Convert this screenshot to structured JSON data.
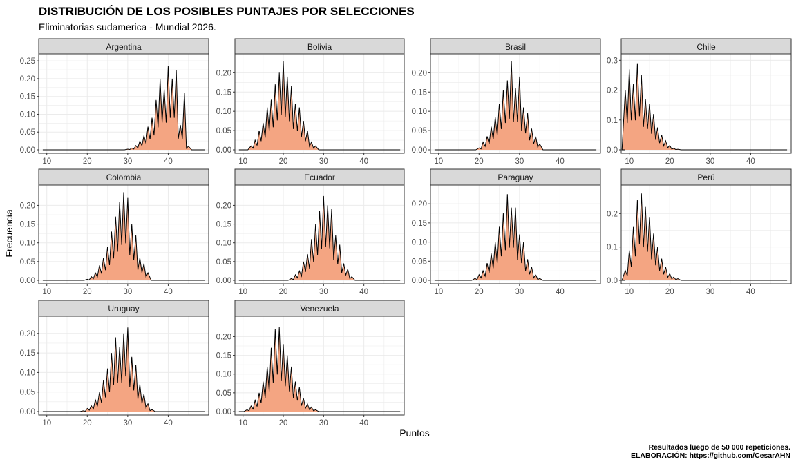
{
  "title": "DISTRIBUCIÓN DE LOS POSIBLES PUNTAJES POR SELECCIONES",
  "subtitle": "Eliminatorias sudamerica - Mundial 2026.",
  "xlabel": "Puntos",
  "ylabel": "Frecuencia",
  "caption": [
    "Resultados luego de 50 000 repeticiones.",
    "ELABORACIÓN: https://github.com/CesarAHN"
  ],
  "colors": {
    "fill": "#f4a582",
    "line": "#000000",
    "strip_bg": "#d9d9d9",
    "grid": "#ebebeb",
    "panel_border": "#333333"
  },
  "chart_data": {
    "type": "area",
    "facet": "wrap",
    "x_range": [
      8,
      50
    ],
    "x_ticks": [
      10,
      20,
      30,
      40
    ],
    "grid": true,
    "panels": [
      {
        "name": "Argentina",
        "ylim": [
          0,
          0.26
        ],
        "y_ticks": [
          0.0,
          0.05,
          0.1,
          0.15,
          0.2,
          0.25
        ],
        "y_tick_labels": [
          "0.00",
          "0.05",
          "0.10",
          "0.15",
          "0.20",
          "0.25"
        ],
        "peaks": [
          [
            30,
            0.002
          ],
          [
            31,
            0.005
          ],
          [
            32,
            0.012
          ],
          [
            33,
            0.025
          ],
          [
            34,
            0.04
          ],
          [
            35,
            0.065
          ],
          [
            36,
            0.09
          ],
          [
            37,
            0.14
          ],
          [
            38,
            0.2
          ],
          [
            39,
            0.17
          ],
          [
            40,
            0.235
          ],
          [
            41,
            0.2
          ],
          [
            42,
            0.225
          ],
          [
            43,
            0.07
          ],
          [
            44,
            0.16
          ],
          [
            45,
            0.01
          ]
        ]
      },
      {
        "name": "Bolivia",
        "ylim": [
          0,
          0.24
        ],
        "y_ticks": [
          0.0,
          0.05,
          0.1,
          0.15,
          0.2
        ],
        "y_tick_labels": [
          "0.00",
          "0.05",
          "0.10",
          "0.15",
          "0.20"
        ],
        "peaks": [
          [
            12,
            0.01
          ],
          [
            13,
            0.025
          ],
          [
            14,
            0.05
          ],
          [
            15,
            0.07
          ],
          [
            16,
            0.11
          ],
          [
            17,
            0.13
          ],
          [
            18,
            0.17
          ],
          [
            19,
            0.2
          ],
          [
            20,
            0.23
          ],
          [
            21,
            0.19
          ],
          [
            22,
            0.165
          ],
          [
            23,
            0.12
          ],
          [
            24,
            0.11
          ],
          [
            25,
            0.075
          ],
          [
            26,
            0.05
          ],
          [
            27,
            0.02
          ],
          [
            28,
            0.01
          ]
        ]
      },
      {
        "name": "Brasil",
        "ylim": [
          0,
          0.24
        ],
        "y_ticks": [
          0.0,
          0.05,
          0.1,
          0.15,
          0.2
        ],
        "y_tick_labels": [
          "0.00",
          "0.05",
          "0.10",
          "0.15",
          "0.20"
        ],
        "peaks": [
          [
            20,
            0.005
          ],
          [
            21,
            0.02
          ],
          [
            22,
            0.035
          ],
          [
            23,
            0.06
          ],
          [
            24,
            0.085
          ],
          [
            25,
            0.12
          ],
          [
            26,
            0.155
          ],
          [
            27,
            0.18
          ],
          [
            28,
            0.23
          ],
          [
            29,
            0.16
          ],
          [
            30,
            0.19
          ],
          [
            31,
            0.11
          ],
          [
            32,
            0.095
          ],
          [
            33,
            0.055
          ],
          [
            34,
            0.035
          ],
          [
            35,
            0.015
          ]
        ]
      },
      {
        "name": "Chile",
        "ylim": [
          0,
          0.31
        ],
        "y_ticks": [
          0.0,
          0.1,
          0.2,
          0.3
        ],
        "y_tick_labels": [
          "0.0",
          "0.1",
          "0.2",
          "0.3"
        ],
        "peaks": [
          [
            9,
            0.2
          ],
          [
            10,
            0.27
          ],
          [
            11,
            0.22
          ],
          [
            12,
            0.29
          ],
          [
            13,
            0.25
          ],
          [
            14,
            0.17
          ],
          [
            15,
            0.155
          ],
          [
            16,
            0.12
          ],
          [
            17,
            0.075
          ],
          [
            18,
            0.05
          ],
          [
            19,
            0.03
          ],
          [
            20,
            0.015
          ],
          [
            21,
            0.005
          ],
          [
            22,
            0.002
          ]
        ]
      },
      {
        "name": "Colombia",
        "ylim": [
          0,
          0.245
        ],
        "y_ticks": [
          0.0,
          0.05,
          0.1,
          0.15,
          0.2
        ],
        "y_tick_labels": [
          "0.00",
          "0.05",
          "0.10",
          "0.15",
          "0.20"
        ],
        "peaks": [
          [
            20,
            0.003
          ],
          [
            21,
            0.01
          ],
          [
            22,
            0.02
          ],
          [
            23,
            0.04
          ],
          [
            24,
            0.06
          ],
          [
            25,
            0.09
          ],
          [
            26,
            0.13
          ],
          [
            27,
            0.17
          ],
          [
            28,
            0.21
          ],
          [
            29,
            0.235
          ],
          [
            30,
            0.22
          ],
          [
            31,
            0.15
          ],
          [
            32,
            0.12
          ],
          [
            33,
            0.06
          ],
          [
            34,
            0.045
          ],
          [
            35,
            0.02
          ]
        ]
      },
      {
        "name": "Ecuador",
        "ylim": [
          0,
          0.245
        ],
        "y_ticks": [
          0.0,
          0.05,
          0.1,
          0.15,
          0.2
        ],
        "y_tick_labels": [
          "0.00",
          "0.05",
          "0.10",
          "0.15",
          "0.20"
        ],
        "peaks": [
          [
            22,
            0.005
          ],
          [
            23,
            0.015
          ],
          [
            24,
            0.025
          ],
          [
            25,
            0.05
          ],
          [
            26,
            0.07
          ],
          [
            27,
            0.11
          ],
          [
            28,
            0.15
          ],
          [
            29,
            0.185
          ],
          [
            30,
            0.225
          ],
          [
            31,
            0.2
          ],
          [
            32,
            0.19
          ],
          [
            33,
            0.12
          ],
          [
            34,
            0.095
          ],
          [
            35,
            0.045
          ],
          [
            36,
            0.03
          ],
          [
            37,
            0.01
          ]
        ]
      },
      {
        "name": "Paraguay",
        "ylim": [
          0,
          0.24
        ],
        "y_ticks": [
          0.0,
          0.05,
          0.1,
          0.15,
          0.2
        ],
        "y_tick_labels": [
          "0.00",
          "0.05",
          "0.10",
          "0.15",
          "0.20"
        ],
        "peaks": [
          [
            19,
            0.005
          ],
          [
            20,
            0.015
          ],
          [
            21,
            0.025
          ],
          [
            22,
            0.045
          ],
          [
            23,
            0.07
          ],
          [
            24,
            0.1
          ],
          [
            25,
            0.14
          ],
          [
            26,
            0.175
          ],
          [
            27,
            0.225
          ],
          [
            28,
            0.19
          ],
          [
            29,
            0.19
          ],
          [
            30,
            0.12
          ],
          [
            31,
            0.1
          ],
          [
            32,
            0.055
          ],
          [
            33,
            0.035
          ],
          [
            34,
            0.015
          ],
          [
            35,
            0.005
          ]
        ]
      },
      {
        "name": "Perú",
        "ylim": [
          0,
          0.275
        ],
        "y_ticks": [
          0.0,
          0.1,
          0.2
        ],
        "y_tick_labels": [
          "0.0",
          "0.1",
          "0.2"
        ],
        "peaks": [
          [
            9,
            0.03
          ],
          [
            10,
            0.09
          ],
          [
            11,
            0.16
          ],
          [
            12,
            0.24
          ],
          [
            13,
            0.26
          ],
          [
            14,
            0.22
          ],
          [
            15,
            0.19
          ],
          [
            16,
            0.14
          ],
          [
            17,
            0.1
          ],
          [
            18,
            0.065
          ],
          [
            19,
            0.04
          ],
          [
            20,
            0.02
          ],
          [
            21,
            0.01
          ],
          [
            22,
            0.005
          ]
        ]
      },
      {
        "name": "Uruguay",
        "ylim": [
          0,
          0.235
        ],
        "y_ticks": [
          0.0,
          0.05,
          0.1,
          0.15,
          0.2
        ],
        "y_tick_labels": [
          "0.00",
          "0.05",
          "0.10",
          "0.15",
          "0.20"
        ],
        "peaks": [
          [
            19,
            0.002
          ],
          [
            20,
            0.008
          ],
          [
            21,
            0.015
          ],
          [
            22,
            0.03
          ],
          [
            23,
            0.05
          ],
          [
            24,
            0.08
          ],
          [
            25,
            0.11
          ],
          [
            26,
            0.15
          ],
          [
            27,
            0.19
          ],
          [
            28,
            0.165
          ],
          [
            29,
            0.2
          ],
          [
            30,
            0.215
          ],
          [
            31,
            0.14
          ],
          [
            32,
            0.12
          ],
          [
            33,
            0.07
          ],
          [
            34,
            0.045
          ],
          [
            35,
            0.02
          ],
          [
            36,
            0.005
          ]
        ]
      },
      {
        "name": "Venezuela",
        "ylim": [
          0,
          0.245
        ],
        "y_ticks": [
          0.0,
          0.05,
          0.1,
          0.15,
          0.2
        ],
        "y_tick_labels": [
          "0.00",
          "0.05",
          "0.10",
          "0.15",
          "0.20"
        ],
        "peaks": [
          [
            11,
            0.005
          ],
          [
            12,
            0.015
          ],
          [
            13,
            0.03
          ],
          [
            14,
            0.05
          ],
          [
            15,
            0.08
          ],
          [
            16,
            0.12
          ],
          [
            17,
            0.17
          ],
          [
            18,
            0.22
          ],
          [
            19,
            0.225
          ],
          [
            20,
            0.18
          ],
          [
            21,
            0.15
          ],
          [
            22,
            0.12
          ],
          [
            23,
            0.08
          ],
          [
            24,
            0.065
          ],
          [
            25,
            0.035
          ],
          [
            26,
            0.02
          ],
          [
            27,
            0.012
          ],
          [
            28,
            0.005
          ]
        ]
      }
    ]
  }
}
